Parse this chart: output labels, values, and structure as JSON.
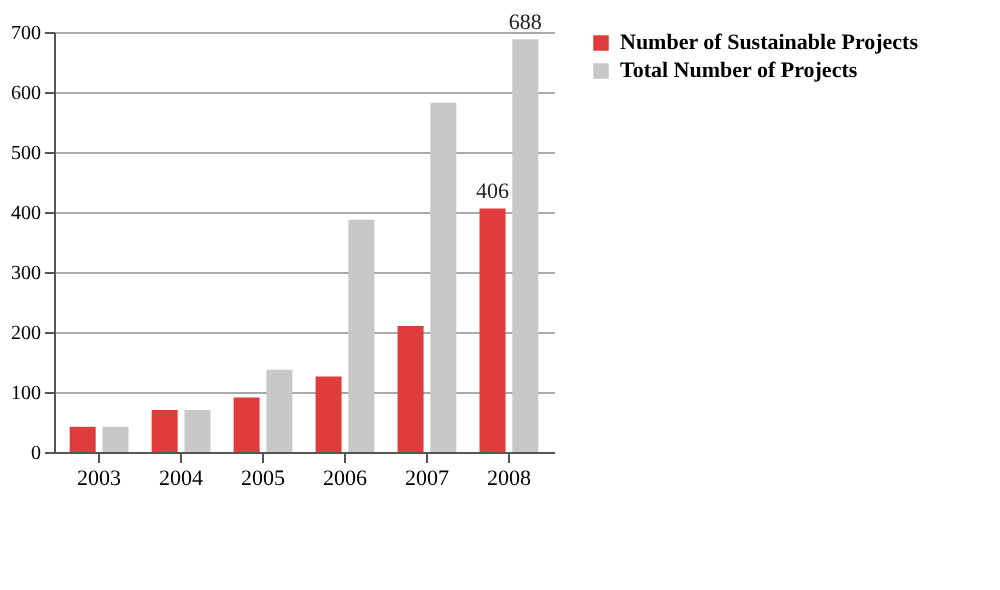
{
  "chart_data": {
    "type": "bar",
    "categories": [
      "2003",
      "2004",
      "2005",
      "2006",
      "2007",
      "2008"
    ],
    "series": [
      {
        "name": "Number of Sustainable Projects",
        "color": "#e03c3c",
        "values": [
          42,
          70,
          91,
          126,
          210,
          406
        ],
        "value_labels": [
          null,
          null,
          null,
          null,
          null,
          "406"
        ]
      },
      {
        "name": "Total Number of Projects",
        "color": "#c8c8c8",
        "values": [
          42,
          70,
          137,
          387,
          582,
          688
        ],
        "value_labels": [
          null,
          null,
          null,
          null,
          null,
          "688"
        ]
      }
    ],
    "ylim": [
      0,
      700
    ],
    "yticks": [
      0,
      100,
      200,
      300,
      400,
      500,
      600,
      700
    ],
    "grid": "y",
    "legend": "right"
  }
}
